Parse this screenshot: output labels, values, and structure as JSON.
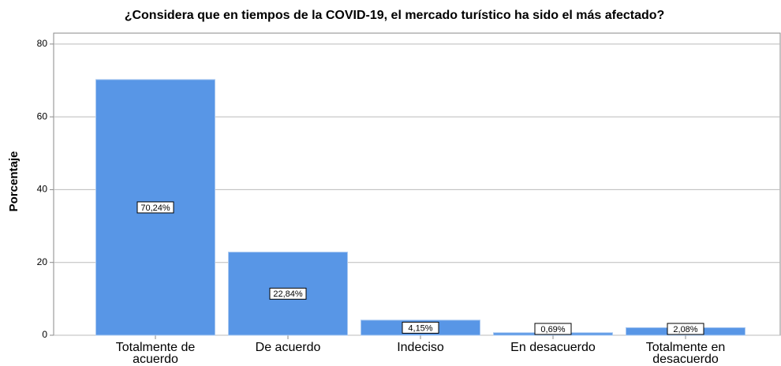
{
  "chart_data": {
    "type": "bar",
    "title": "¿Considera que en tiempos de la COVID-19, el mercado turístico ha sido el más afectado?",
    "ylabel": "Porcentaje",
    "categories": [
      "Totalmente de acuerdo",
      "De acuerdo",
      "Indeciso",
      "En desacuerdo",
      "Totalmente en desacuerdo"
    ],
    "values": [
      70.24,
      22.84,
      4.15,
      0.69,
      2.08
    ],
    "value_labels": [
      "70,24%",
      "22,84%",
      "4,15%",
      "0,69%",
      "2,08%"
    ],
    "color": "#5896e6",
    "ylim": [
      0,
      83
    ],
    "yticks": [
      0,
      20,
      40,
      60,
      80
    ],
    "grid": true
  }
}
